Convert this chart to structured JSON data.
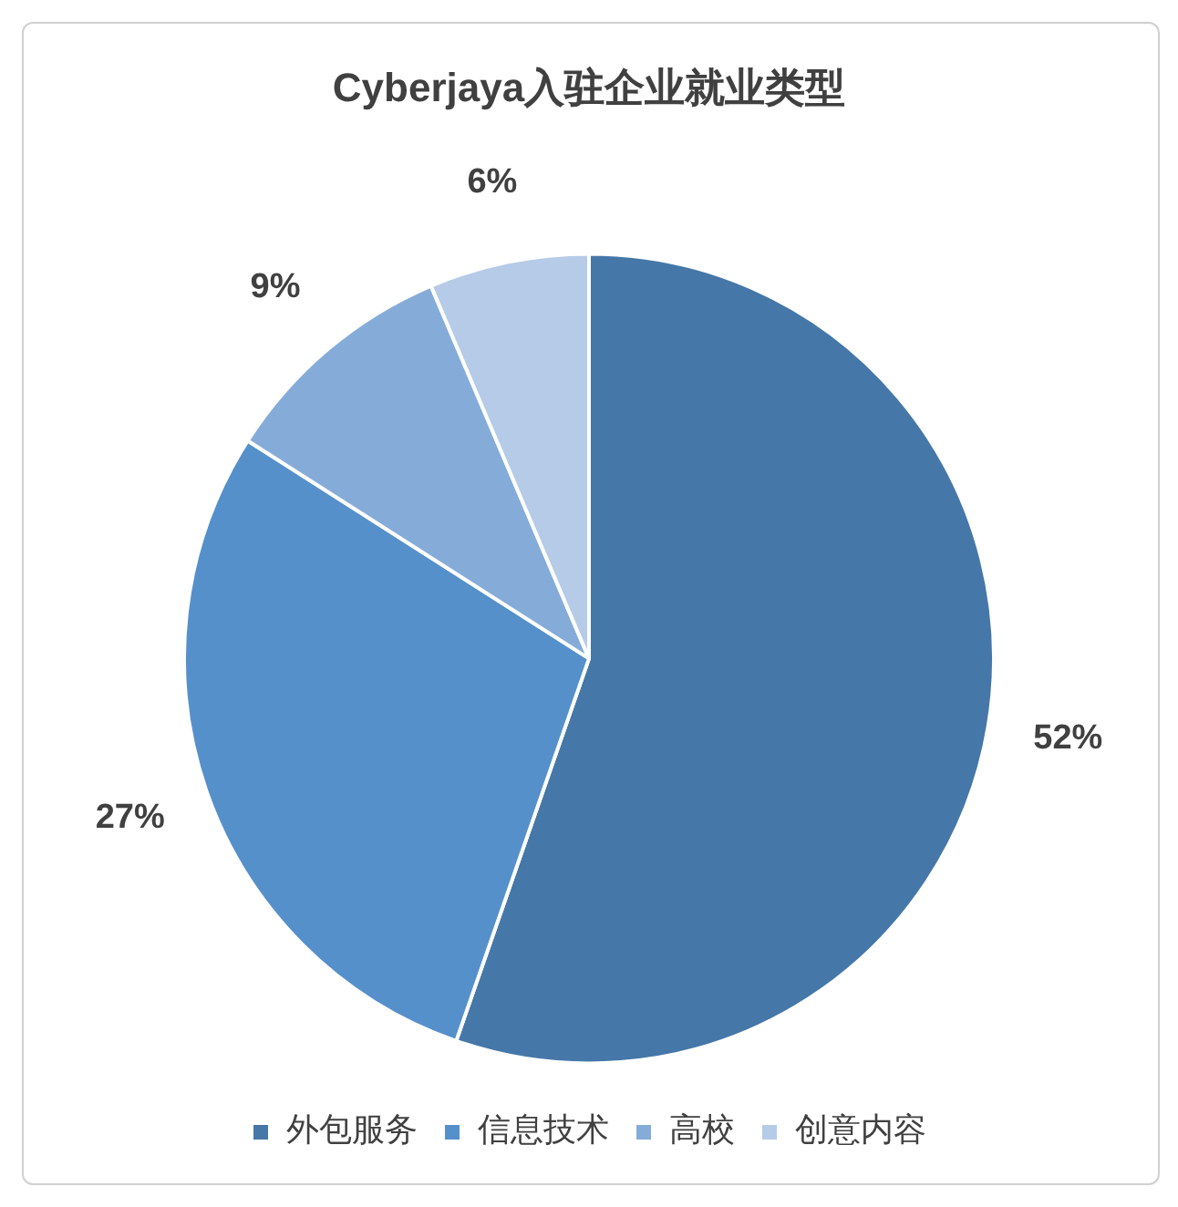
{
  "chart_data": {
    "type": "pie",
    "title": "Cyberjaya入驻企业就业类型",
    "categories": [
      "外包服务",
      "信息技术",
      "高校",
      "创意内容"
    ],
    "values": [
      52,
      27,
      9,
      6
    ],
    "colors": [
      "#4577a8",
      "#5590cb",
      "#85acd9",
      "#b5cbe7"
    ],
    "value_labels": [
      "52%",
      "27%",
      "9%",
      "6%"
    ],
    "legend": "bottom"
  }
}
